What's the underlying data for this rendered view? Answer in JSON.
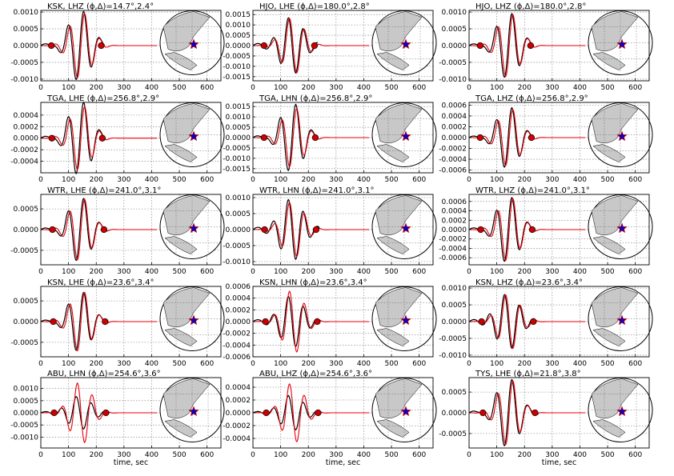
{
  "figure": {
    "xlabel": "time, sec",
    "xlim": [
      0,
      650
    ],
    "xticks": [
      0,
      100,
      200,
      300,
      400,
      500,
      600
    ]
  },
  "colors": {
    "data": "#000000",
    "synthetic": "#e8000b",
    "marker": "#cc0000",
    "land": "#c8c8c8",
    "star": "#0000cc",
    "star_edge": "#cc0000"
  },
  "icons": {
    "event": "star-icon",
    "pick": "circle-marker"
  },
  "chart_data": [
    {
      "type": "line",
      "title": "KSK, LHZ (ϕ,Δ)=14.7°,2.4°",
      "ylim": [
        -0.00105,
        0.00105
      ],
      "yticks": [
        "0.0010",
        "0.0005",
        "0.0000",
        "-0.0005",
        "-0.0010"
      ],
      "ytick_values": [
        0.001,
        0.0005,
        0,
        -0.0005,
        -0.001
      ],
      "picks": [
        38,
        218
      ],
      "data_end": 230,
      "synth_end": 420,
      "peak": 0.00102,
      "dpeak": 0.00102,
      "phase": 1
    },
    {
      "type": "line",
      "title": "HJO, LHE (ϕ,Δ)=180.0°,2.8°",
      "ylim": [
        -0.0017,
        0.0017
      ],
      "yticks": [
        "0.0015",
        "0.0010",
        "0.0005",
        "0.0000",
        "-0.0005",
        "-0.0010",
        "-0.0015"
      ],
      "ytick_values": [
        0.0015,
        0.001,
        0.0005,
        0,
        -0.0005,
        -0.001,
        -0.0015
      ],
      "picks": [
        40,
        222
      ],
      "data_end": 235,
      "synth_end": 420,
      "peak": 0.0014,
      "dpeak": 0.0015,
      "phase": -1
    },
    {
      "type": "line",
      "title": "HJO, LHZ (ϕ,Δ)=180.0°,2.8°",
      "ylim": [
        -0.00105,
        0.00105
      ],
      "yticks": [
        "0.0010",
        "0.0005",
        "0.0000",
        "-0.0005",
        "-0.0010"
      ],
      "ytick_values": [
        0.001,
        0.0005,
        0,
        -0.0005,
        -0.001
      ],
      "picks": [
        40,
        222
      ],
      "data_end": 235,
      "synth_end": 420,
      "peak": 0.00098,
      "dpeak": 0.00095,
      "phase": 1
    },
    {
      "type": "line",
      "title": "TGA, LHE (ϕ,Δ)=256.8°,2.9°",
      "ylim": [
        -0.0006,
        0.00062
      ],
      "yticks": [
        "0.0004",
        "0.0002",
        "0.0000",
        "-0.0002",
        "-0.0004"
      ],
      "ytick_values": [
        0.0004,
        0.0002,
        0,
        -0.0002,
        -0.0004
      ],
      "picks": [
        40,
        222
      ],
      "data_end": 235,
      "synth_end": 420,
      "peak": 0.00058,
      "dpeak": 0.00062,
      "phase": 1
    },
    {
      "type": "line",
      "title": "TGA, LHN (ϕ,Δ)=256.8°,2.9°",
      "ylim": [
        -0.0017,
        0.0017
      ],
      "yticks": [
        "0.0015",
        "0.0010",
        "0.0005",
        "0.0000",
        "-0.0005",
        "-0.0010",
        "-0.0015"
      ],
      "ytick_values": [
        0.0015,
        0.001,
        0.0005,
        0,
        -0.0005,
        -0.001,
        -0.0015
      ],
      "picks": [
        40,
        225
      ],
      "data_end": 235,
      "synth_end": 420,
      "peak": 0.0015,
      "dpeak": 0.0016,
      "phase": 1
    },
    {
      "type": "line",
      "title": "TGA, LHZ (ϕ,Δ)=256.8°,2.9°",
      "ylim": [
        -0.00065,
        0.00065
      ],
      "yticks": [
        "0.0006",
        "0.0004",
        "0.0002",
        "0.0000",
        "-0.0002",
        "-0.0004",
        "-0.0006"
      ],
      "ytick_values": [
        0.0006,
        0.0004,
        0.0002,
        0,
        -0.0002,
        -0.0004,
        -0.0006
      ],
      "picks": [
        40,
        225
      ],
      "data_end": 235,
      "synth_end": 420,
      "peak": 0.00055,
      "dpeak": 0.00055,
      "phase": 1
    },
    {
      "type": "line",
      "title": "WTR, LHE (ϕ,Δ)=241.0°,3.1°",
      "ylim": [
        -0.00085,
        0.00085
      ],
      "yticks": [
        "0.0005",
        "0.0000",
        "-0.0005"
      ],
      "ytick_values": [
        0.0005,
        0,
        -0.0005
      ],
      "picks": [
        42,
        228
      ],
      "data_end": 240,
      "synth_end": 420,
      "peak": 0.00078,
      "dpeak": 0.00075,
      "phase": 1
    },
    {
      "type": "line",
      "title": "WTR, LHN (ϕ,Δ)=241.0°,3.1°",
      "ylim": [
        -0.0011,
        0.0011
      ],
      "yticks": [
        "0.0010",
        "0.0005",
        "0.0000",
        "-0.0005",
        "-0.0010"
      ],
      "ytick_values": [
        0.001,
        0.0005,
        0,
        -0.0005,
        -0.001
      ],
      "picks": [
        42,
        228
      ],
      "data_end": 240,
      "synth_end": 420,
      "peak": 0.0009,
      "dpeak": 0.00105,
      "phase": -1
    },
    {
      "type": "line",
      "title": "WTR, LHZ (ϕ,Δ)=241.0°,3.1°",
      "ylim": [
        -0.00075,
        0.00075
      ],
      "yticks": [
        "0.0006",
        "0.0004",
        "0.0002",
        "0.0000",
        "-0.0002",
        "-0.0004",
        "-0.0006"
      ],
      "ytick_values": [
        0.0006,
        0.0004,
        0.0002,
        0,
        -0.0002,
        -0.0004,
        -0.0006
      ],
      "picks": [
        42,
        228
      ],
      "data_end": 240,
      "synth_end": 420,
      "peak": 0.0007,
      "dpeak": 0.00068,
      "phase": 1
    },
    {
      "type": "line",
      "title": "KSN, LHE (ϕ,Δ)=23.6°,3.4°",
      "ylim": [
        -0.00085,
        0.00085
      ],
      "yticks": [
        "0.0005",
        "0.0000",
        "-0.0005"
      ],
      "ytick_values": [
        0.0005,
        0,
        -0.0005
      ],
      "picks": [
        45,
        232
      ],
      "data_end": 245,
      "synth_end": 420,
      "peak": 0.00075,
      "dpeak": 0.0007,
      "phase": 1
    },
    {
      "type": "line",
      "title": "KSN, LHN (ϕ,Δ)=23.6°,3.4°",
      "ylim": [
        -0.0006,
        0.0006
      ],
      "yticks": [
        "0.0006",
        "0.0004",
        "0.0002",
        "0.0000",
        "-0.0002",
        "-0.0004",
        "-0.0006"
      ],
      "ytick_values": [
        0.0006,
        0.0004,
        0.0002,
        0,
        -0.0002,
        -0.0004,
        -0.0006
      ],
      "picks": [
        45,
        232
      ],
      "data_end": 245,
      "synth_end": 420,
      "peak": 0.00055,
      "dpeak": 0.00048,
      "phase": -1
    },
    {
      "type": "line",
      "title": "KSN, LHZ (ϕ,Δ)=23.6°,3.4°",
      "ylim": [
        -0.00105,
        0.00105
      ],
      "yticks": [
        "0.0010",
        "0.0005",
        "0.0000",
        "-0.0005",
        "-0.0010"
      ],
      "ytick_values": [
        0.001,
        0.0005,
        0,
        -0.0005,
        -0.001
      ],
      "picks": [
        45,
        232
      ],
      "data_end": 245,
      "synth_end": 420,
      "peak": 0.00085,
      "dpeak": 0.0009,
      "phase": -1
    },
    {
      "type": "line",
      "title": "ABU, LHN (ϕ,Δ)=254.6°,3.6°",
      "ylim": [
        -0.00145,
        0.00145
      ],
      "yticks": [
        "0.0010",
        "0.0005",
        "0.0000",
        "-0.0005",
        "-0.0010"
      ],
      "ytick_values": [
        0.001,
        0.0005,
        0,
        -0.0005,
        -0.001
      ],
      "picks": [
        48,
        235
      ],
      "data_end": 248,
      "synth_end": 420,
      "peak": 0.0013,
      "dpeak": 0.00075,
      "phase": -1
    },
    {
      "type": "line",
      "title": "ABU, LHZ (ϕ,Δ)=254.6°,3.6°",
      "ylim": [
        -0.00055,
        0.00055
      ],
      "yticks": [
        "0.0004",
        "0.0002",
        "0.0000",
        "-0.0002",
        "-0.0004"
      ],
      "ytick_values": [
        0.0004,
        0.0002,
        0,
        -0.0002,
        -0.0004
      ],
      "picks": [
        48,
        235
      ],
      "data_end": 248,
      "synth_end": 420,
      "peak": 0.00048,
      "dpeak": 0.0003,
      "phase": -1
    },
    {
      "type": "line",
      "title": "TYS, LHE (ϕ,Δ)=21.8°,3.8°",
      "ylim": [
        -0.00085,
        0.00085
      ],
      "yticks": [
        "0.0005",
        "0.0000",
        "-0.0005"
      ],
      "ytick_values": [
        0.0005,
        0,
        -0.0005
      ],
      "picks": [
        50,
        238
      ],
      "data_end": 250,
      "synth_end": 420,
      "peak": 0.00082,
      "dpeak": 0.0008,
      "phase": 1
    }
  ]
}
